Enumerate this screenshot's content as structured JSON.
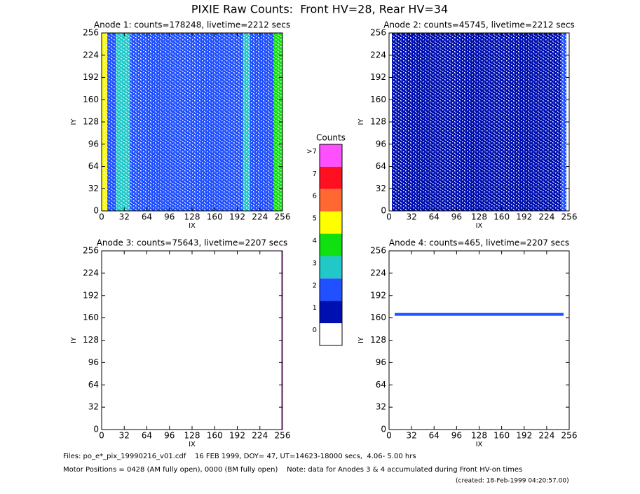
{
  "chart_data": {
    "type": "heatmap",
    "title": "PIXIE Raw Counts:  Front HV=28, Rear HV=34",
    "colorbar": {
      "title": "Counts",
      "labels": [
        0,
        1,
        2,
        3,
        4,
        5,
        6,
        7,
        ">7"
      ],
      "colors": [
        "#ffffff",
        "#0010b0",
        "#2050ff",
        "#20c8c8",
        "#10e010",
        "#ffff00",
        "#ff6830",
        "#ff1020",
        "#ff50ff"
      ]
    },
    "panels": [
      {
        "title": "Anode 1: counts=178248, livetime=2212 secs",
        "xlabel": "IX",
        "ylabel": "IY",
        "xlim": [
          0,
          256
        ],
        "ylim": [
          0,
          256
        ],
        "xticks": [
          0,
          32,
          64,
          96,
          128,
          160,
          192,
          224,
          256
        ],
        "yticks": [
          0,
          32,
          64,
          96,
          128,
          160,
          192,
          224,
          256
        ],
        "regions": [
          {
            "x": [
              0,
              256
            ],
            "y": [
              0,
              256
            ],
            "level": 2
          },
          {
            "x": [
              0,
              8
            ],
            "y": [
              0,
              256
            ],
            "level": 5
          },
          {
            "x": [
              20,
              40
            ],
            "y": [
              0,
              256
            ],
            "level": 3
          },
          {
            "x": [
              200,
              210
            ],
            "y": [
              0,
              256
            ],
            "level": 3
          },
          {
            "x": [
              244,
              256
            ],
            "y": [
              0,
              256
            ],
            "level": 4
          }
        ]
      },
      {
        "title": "Anode 2: counts=45745, livetime=2212 secs",
        "xlabel": "IX",
        "ylabel": "IY",
        "xlim": [
          0,
          256
        ],
        "ylim": [
          0,
          256
        ],
        "xticks": [
          0,
          32,
          64,
          96,
          128,
          160,
          192,
          224,
          256
        ],
        "yticks": [
          0,
          32,
          64,
          96,
          128,
          160,
          192,
          224,
          256
        ],
        "regions": [
          {
            "x": [
              4,
              252
            ],
            "y": [
              0,
              256
            ],
            "level": 1
          },
          {
            "x": [
              244,
              252
            ],
            "y": [
              0,
              256
            ],
            "level": 2
          }
        ]
      },
      {
        "title": "Anode 3: counts=75643, livetime=2207 secs",
        "xlabel": "IX",
        "ylabel": "IY",
        "xlim": [
          0,
          256
        ],
        "ylim": [
          0,
          256
        ],
        "xticks": [
          0,
          32,
          64,
          96,
          128,
          160,
          192,
          224,
          256
        ],
        "yticks": [
          0,
          32,
          64,
          96,
          128,
          160,
          192,
          224,
          256
        ],
        "regions": [
          {
            "x": [
              254,
              256
            ],
            "y": [
              0,
              256
            ],
            "level": 8
          }
        ]
      },
      {
        "title": "Anode 4: counts=465, livetime=2207 secs",
        "xlabel": "IX",
        "ylabel": "IY",
        "xlim": [
          0,
          256
        ],
        "ylim": [
          0,
          256
        ],
        "xticks": [
          0,
          32,
          64,
          96,
          128,
          160,
          192,
          224,
          256
        ],
        "yticks": [
          0,
          32,
          64,
          96,
          128,
          160,
          192,
          224,
          256
        ],
        "regions": [
          {
            "x": [
              8,
              248
            ],
            "y": [
              163,
              167
            ],
            "level": 2
          }
        ]
      }
    ],
    "footer": [
      "Files: po_e*_pix_19990216_v01.cdf    16 FEB 1999, DOY= 47, UT=14623-18000 secs,  4.06- 5.00 hrs",
      "Motor Positions = 0428 (AM fully open), 0000 (BM fully open)    Note: data for Anodes 3 & 4 accumulated during Front HV-on times",
      "(created: 18-Feb-1999 04:20:57.00)"
    ]
  }
}
